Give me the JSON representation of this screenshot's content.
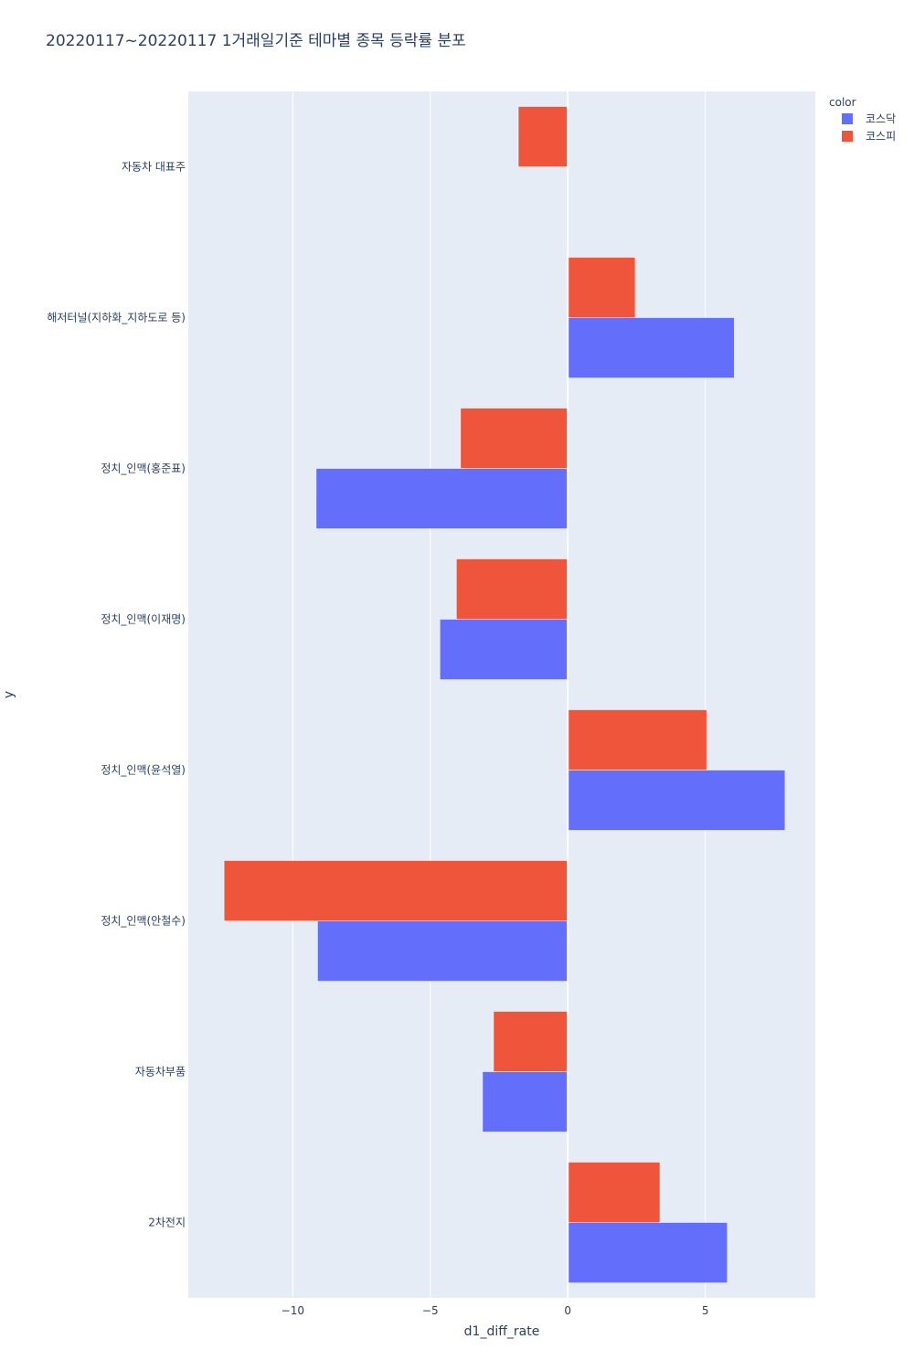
{
  "chart_data": {
    "type": "bar",
    "orientation": "horizontal",
    "title": "20220117~20220117 1거래일기준 테마별 종목 등락률 분포",
    "xlabel": "d1_diff_rate",
    "ylabel": "y",
    "xlim": [
      -13.8,
      9.0
    ],
    "xticks": [
      -10,
      -5,
      0,
      5
    ],
    "xtick_labels": [
      "−10",
      "−5",
      "0",
      "5"
    ],
    "grid": true,
    "legend_title": "color",
    "legend_position": "top-right",
    "categories": [
      "자동차 대표주",
      "해저터널(지하화_지하도로 등)",
      "정치_인맥(홍준표)",
      "정치_인맥(이재명)",
      "정치_인맥(윤석열)",
      "정치_인맥(안철수)",
      "자동차부품",
      "2차전지"
    ],
    "series": [
      {
        "name": "코스닥",
        "color": "#636efa",
        "values": [
          null,
          6.05,
          -9.15,
          -4.65,
          7.9,
          -9.1,
          -3.1,
          5.8
        ]
      },
      {
        "name": "코스피",
        "color": "#ef553b",
        "values": [
          -1.8,
          2.45,
          -3.9,
          -4.05,
          5.05,
          -12.5,
          -2.7,
          3.35
        ]
      }
    ]
  }
}
